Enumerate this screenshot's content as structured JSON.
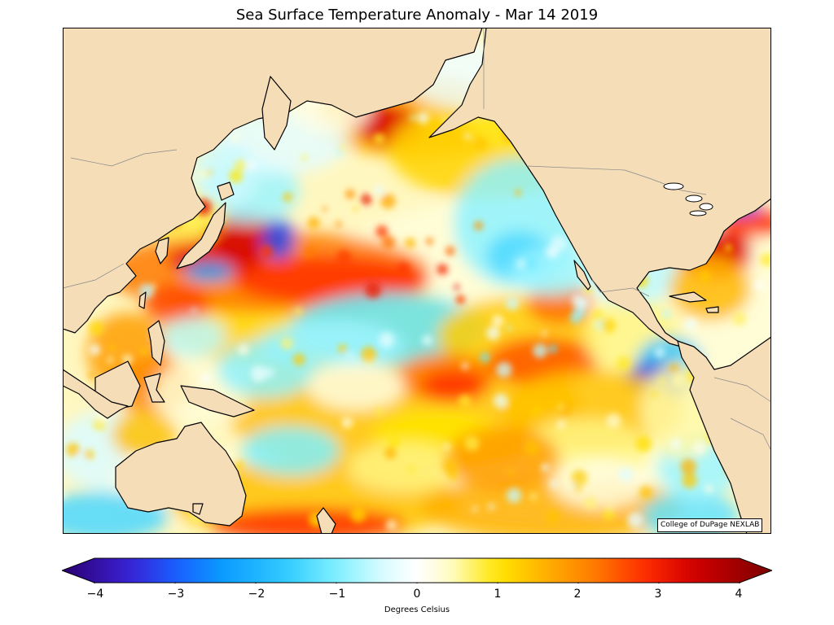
{
  "title": "Sea Surface Temperature Anomaly - Mar 14 2019",
  "credit": "College of DuPage NEXLAB",
  "colorbar": {
    "label": "Degrees Celsius",
    "min": -4,
    "max": 4,
    "ticks": [
      "−4",
      "−3",
      "−2",
      "−1",
      "0",
      "1",
      "2",
      "3",
      "4"
    ],
    "tick_values": [
      -4,
      -3,
      -2,
      -1,
      0,
      1,
      2,
      3,
      4
    ],
    "stops": [
      {
        "value": -4.4,
        "color": "#2a0070"
      },
      {
        "value": -3.6,
        "color": "#3a1fd0"
      },
      {
        "value": -3.0,
        "color": "#1a5cff"
      },
      {
        "value": -2.4,
        "color": "#0a9cff"
      },
      {
        "value": -1.6,
        "color": "#33ccff"
      },
      {
        "value": -1.0,
        "color": "#7ff0ff"
      },
      {
        "value": -0.4,
        "color": "#dcfcff"
      },
      {
        "value": 0.0,
        "color": "#ffffff"
      },
      {
        "value": 0.4,
        "color": "#fffcc8"
      },
      {
        "value": 1.0,
        "color": "#ffe600"
      },
      {
        "value": 1.6,
        "color": "#ffb000"
      },
      {
        "value": 2.2,
        "color": "#ff7a00"
      },
      {
        "value": 2.8,
        "color": "#ff3000"
      },
      {
        "value": 3.4,
        "color": "#d40000"
      },
      {
        "value": 4.4,
        "color": "#7a0000"
      }
    ]
  },
  "map": {
    "land_color": "#f5ddb8",
    "coast_color": "#000000",
    "border_color": "#888888"
  }
}
